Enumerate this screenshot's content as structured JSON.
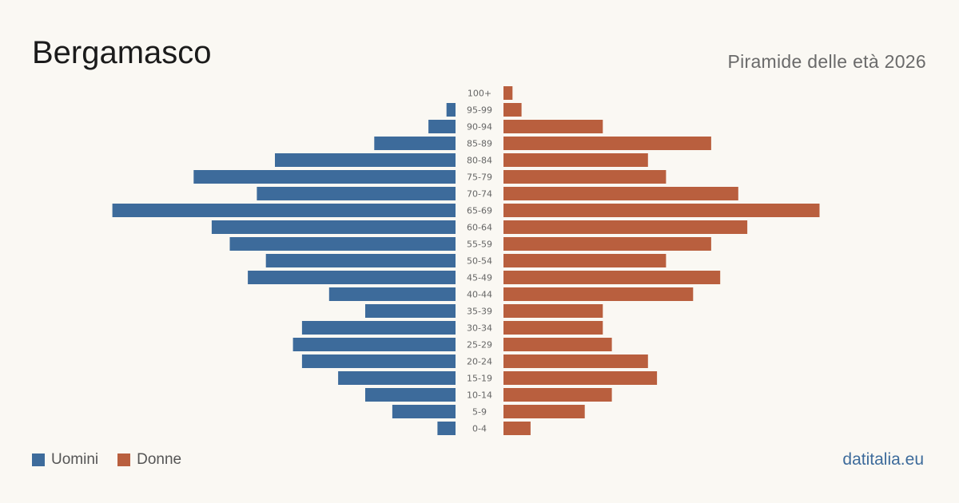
{
  "header": {
    "title": "Bergamasco",
    "subtitle": "Piramide delle età 2026"
  },
  "legend": {
    "men_label": "Uomini",
    "women_label": "Donne"
  },
  "footer": {
    "source": "datitalia.eu"
  },
  "colors": {
    "men": "#3d6b9b",
    "women": "#b95f3e",
    "background": "#faf8f3"
  },
  "chart_data": {
    "type": "bar",
    "orientation": "horizontal-population-pyramid",
    "categories": [
      "100+",
      "95-99",
      "90-94",
      "85-89",
      "80-84",
      "75-79",
      "70-74",
      "65-69",
      "60-64",
      "55-59",
      "50-54",
      "45-49",
      "40-44",
      "35-39",
      "30-34",
      "25-29",
      "20-24",
      "15-19",
      "10-14",
      "5-9",
      "0-4"
    ],
    "series": [
      {
        "name": "Uomini",
        "values": [
          0,
          1,
          3,
          9,
          20,
          29,
          22,
          38,
          27,
          25,
          21,
          23,
          14,
          10,
          17,
          18,
          17,
          13,
          10,
          7,
          2
        ]
      },
      {
        "name": "Donne",
        "values": [
          1,
          2,
          11,
          23,
          16,
          18,
          26,
          35,
          27,
          23,
          18,
          24,
          21,
          11,
          11,
          12,
          16,
          17,
          12,
          9,
          3
        ]
      }
    ],
    "grid": false,
    "legend_position": "bottom-left"
  }
}
